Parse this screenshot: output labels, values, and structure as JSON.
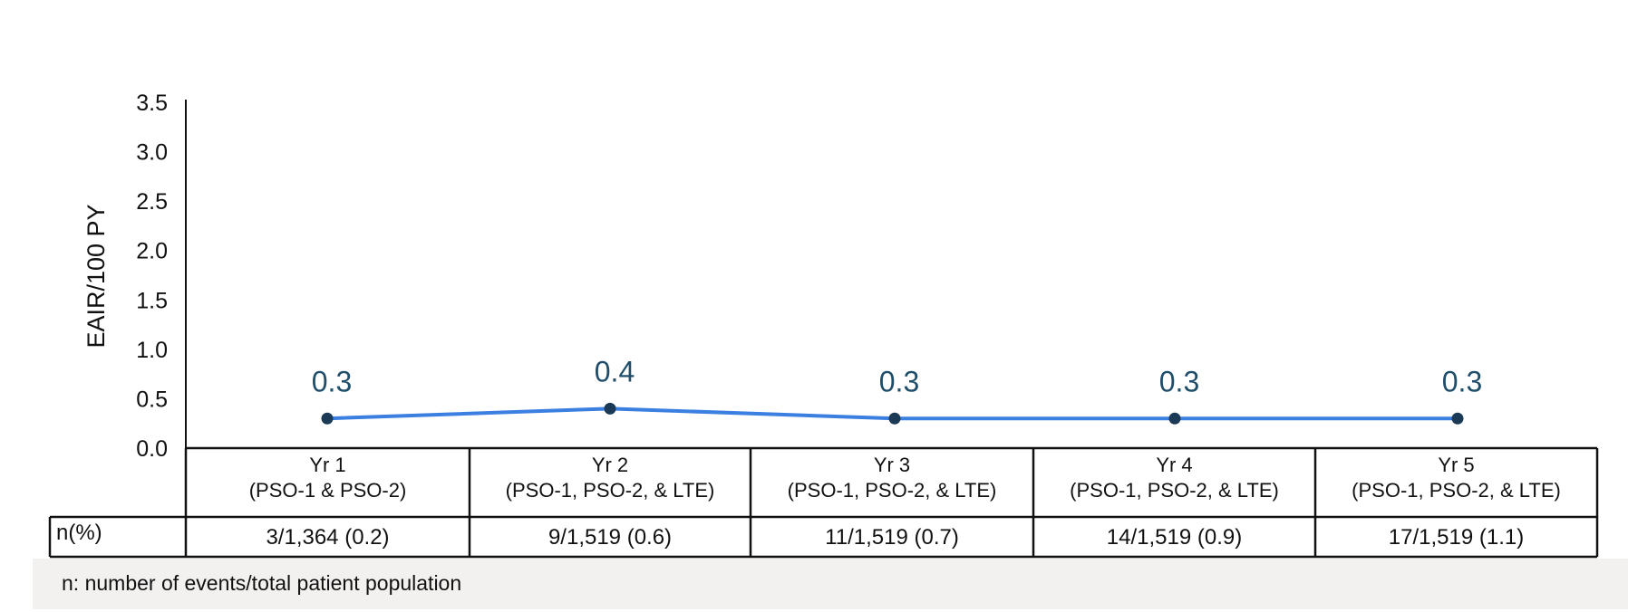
{
  "chart_data": {
    "type": "line",
    "ylabel": "EAIR/100 PY",
    "xlabel": "",
    "ylim": [
      0,
      3.5
    ],
    "yticks": [
      "0.0",
      "0.5",
      "1.0",
      "1.5",
      "2.0",
      "2.5",
      "3.0",
      "3.5"
    ],
    "categories": [
      {
        "line1": "Yr 1",
        "line2": "(PSO-1 & PSO-2)"
      },
      {
        "line1": "Yr 2",
        "line2": "(PSO-1, PSO-2, & LTE)"
      },
      {
        "line1": "Yr 3",
        "line2": "(PSO-1, PSO-2, & LTE)"
      },
      {
        "line1": "Yr 4",
        "line2": "(PSO-1, PSO-2, & LTE)"
      },
      {
        "line1": "Yr 5",
        "line2": "(PSO-1, PSO-2, & LTE)"
      }
    ],
    "values": [
      0.3,
      0.4,
      0.3,
      0.3,
      0.3
    ],
    "data_labels": [
      "0.3",
      "0.4",
      "0.3",
      "0.3",
      "0.3"
    ],
    "line_color": "#3b7fe0",
    "marker_color": "#1b3a55",
    "label_color": "#1f4e6b",
    "grid": false,
    "table": {
      "row_label": "n(%)",
      "cells": [
        "3/1,364 (0.2)",
        "9/1,519 (0.6)",
        "11/1,519 (0.7)",
        "14/1,519 (0.9)",
        "17/1,519 (1.1)"
      ]
    }
  },
  "footnote": "n: number of events/total patient population"
}
